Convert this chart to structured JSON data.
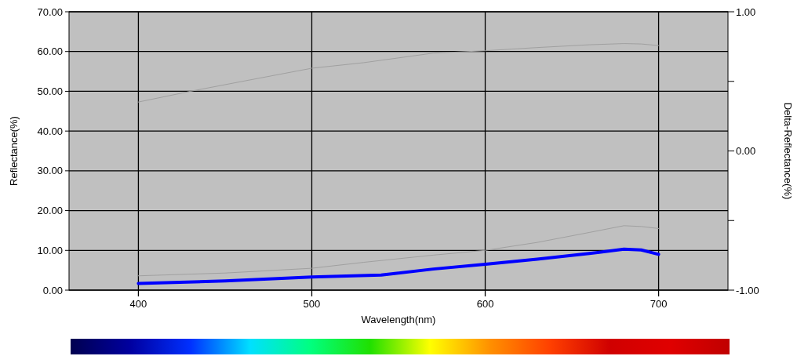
{
  "chart_data": {
    "type": "line",
    "xlabel": "Wavelength(nm)",
    "ylabel": "Reflectance(%)",
    "y2label": "Delta-Reflectance(%)",
    "xlim": [
      360,
      740
    ],
    "xticks": [
      400,
      500,
      600,
      700
    ],
    "ylim": [
      0,
      70
    ],
    "yticks": [
      {
        "value": 0,
        "label": "0.00"
      },
      {
        "value": 10,
        "label": "10.00"
      },
      {
        "value": 20,
        "label": "20.00"
      },
      {
        "value": 30,
        "label": "30.00"
      },
      {
        "value": 40,
        "label": "40.00"
      },
      {
        "value": 50,
        "label": "50.00"
      },
      {
        "value": 60,
        "label": "60.00"
      },
      {
        "value": 70,
        "label": "70.00"
      }
    ],
    "y2lim": [
      -1,
      1
    ],
    "y2ticks": [
      {
        "value": -1,
        "label": "-1.00"
      },
      {
        "value": -0.5,
        "label": null
      },
      {
        "value": 0,
        "label": "0.00"
      },
      {
        "value": 0.5,
        "label": null
      },
      {
        "value": 1,
        "label": "1.00"
      }
    ],
    "grid": true,
    "marker": "none",
    "series": [
      {
        "color": "#a0a0a0",
        "x": [
          400,
          430,
          460,
          500,
          530,
          570,
          600,
          630,
          660,
          680,
          690,
          700
        ],
        "values": [
          47.3,
          50,
          52.5,
          55.8,
          57.2,
          59.6,
          60.2,
          61,
          61.7,
          62,
          61.9,
          61.5
        ]
      },
      {
        "color": "#a0a0a0",
        "x": [
          400,
          450,
          500,
          530,
          570,
          600,
          630,
          660,
          680,
          690,
          700
        ],
        "values": [
          3.6,
          4.3,
          5.5,
          7,
          8.8,
          10,
          12,
          14.5,
          16.2,
          16,
          15.5
        ]
      },
      {
        "color": "#0000ff",
        "x": [
          400,
          450,
          500,
          540,
          570,
          600,
          630,
          660,
          680,
          690,
          700
        ],
        "values": [
          1.7,
          2.3,
          3.3,
          3.8,
          5.3,
          6.5,
          7.8,
          9.2,
          10.3,
          10.1,
          9
        ]
      }
    ]
  }
}
